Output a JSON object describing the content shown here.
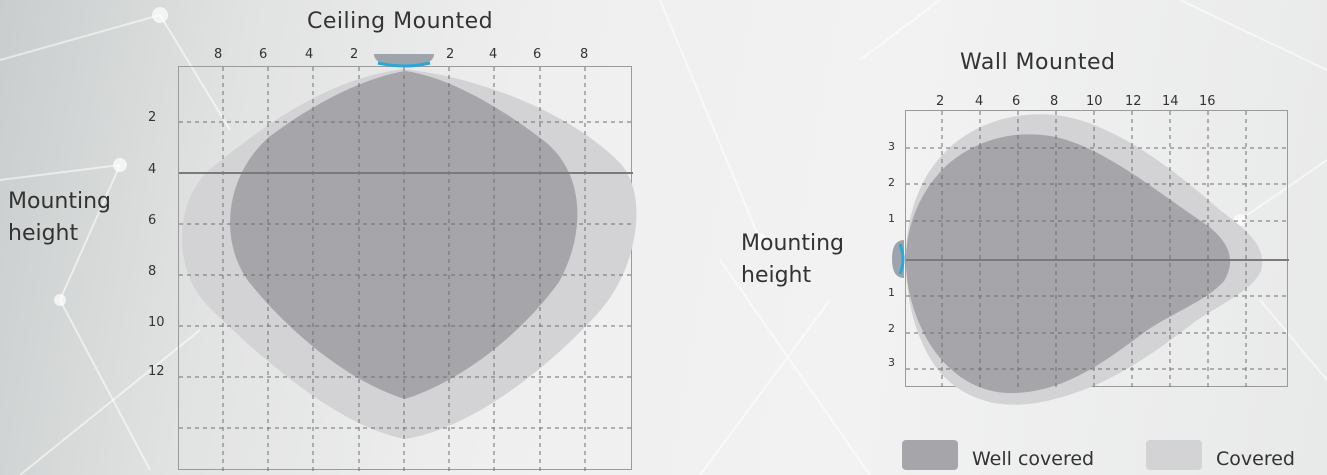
{
  "ceiling": {
    "title": "Ceiling Mounted",
    "x_ticks": [
      "8",
      "6",
      "4",
      "2",
      "2",
      "4",
      "6",
      "8"
    ],
    "y_ticks": [
      "2",
      "4",
      "6",
      "8",
      "10",
      "12"
    ],
    "side_label_line1": "Mounting",
    "side_label_line2": "height"
  },
  "wall": {
    "title": "Wall Mounted",
    "x_ticks": [
      "2",
      "4",
      "6",
      "8",
      "10",
      "12",
      "14",
      "16"
    ],
    "y_ticks": [
      "3",
      "2",
      "1",
      "1",
      "2",
      "3"
    ],
    "side_label_line1": "Mounting",
    "side_label_line2": "height"
  },
  "legend": {
    "well_covered": "Well covered",
    "covered": "Covered"
  },
  "colors": {
    "well_covered": "#a5a5aa",
    "covered": "#d3d3d6",
    "sensor_accent": "#29a8d8"
  }
}
